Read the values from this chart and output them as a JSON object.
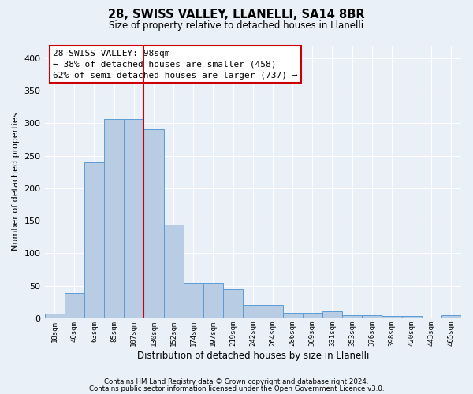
{
  "title1": "28, SWISS VALLEY, LLANELLI, SA14 8BR",
  "title2": "Size of property relative to detached houses in Llanelli",
  "xlabel": "Distribution of detached houses by size in Llanelli",
  "ylabel": "Number of detached properties",
  "categories": [
    "18sqm",
    "40sqm",
    "63sqm",
    "85sqm",
    "107sqm",
    "130sqm",
    "152sqm",
    "174sqm",
    "197sqm",
    "219sqm",
    "242sqm",
    "264sqm",
    "286sqm",
    "309sqm",
    "331sqm",
    "353sqm",
    "376sqm",
    "398sqm",
    "420sqm",
    "443sqm",
    "465sqm"
  ],
  "values": [
    7,
    39,
    240,
    307,
    307,
    291,
    144,
    55,
    55,
    45,
    20,
    21,
    8,
    8,
    11,
    5,
    5,
    4,
    4,
    1,
    5
  ],
  "bar_color": "#b8cce4",
  "bar_edge_color": "#5b9bd5",
  "bg_color": "#eaf0f8",
  "grid_color": "#ffffff",
  "vline_x": 4.5,
  "vline_color": "#cc0000",
  "annotation_line1": "28 SWISS VALLEY: 98sqm",
  "annotation_line2": "← 38% of detached houses are smaller (458)",
  "annotation_line3": "62% of semi-detached houses are larger (737) →",
  "annotation_box_color": "#ffffff",
  "annotation_box_edge": "#cc0000",
  "ylim": [
    0,
    420
  ],
  "yticks": [
    0,
    50,
    100,
    150,
    200,
    250,
    300,
    350,
    400
  ],
  "footer1": "Contains HM Land Registry data © Crown copyright and database right 2024.",
  "footer2": "Contains public sector information licensed under the Open Government Licence v3.0."
}
